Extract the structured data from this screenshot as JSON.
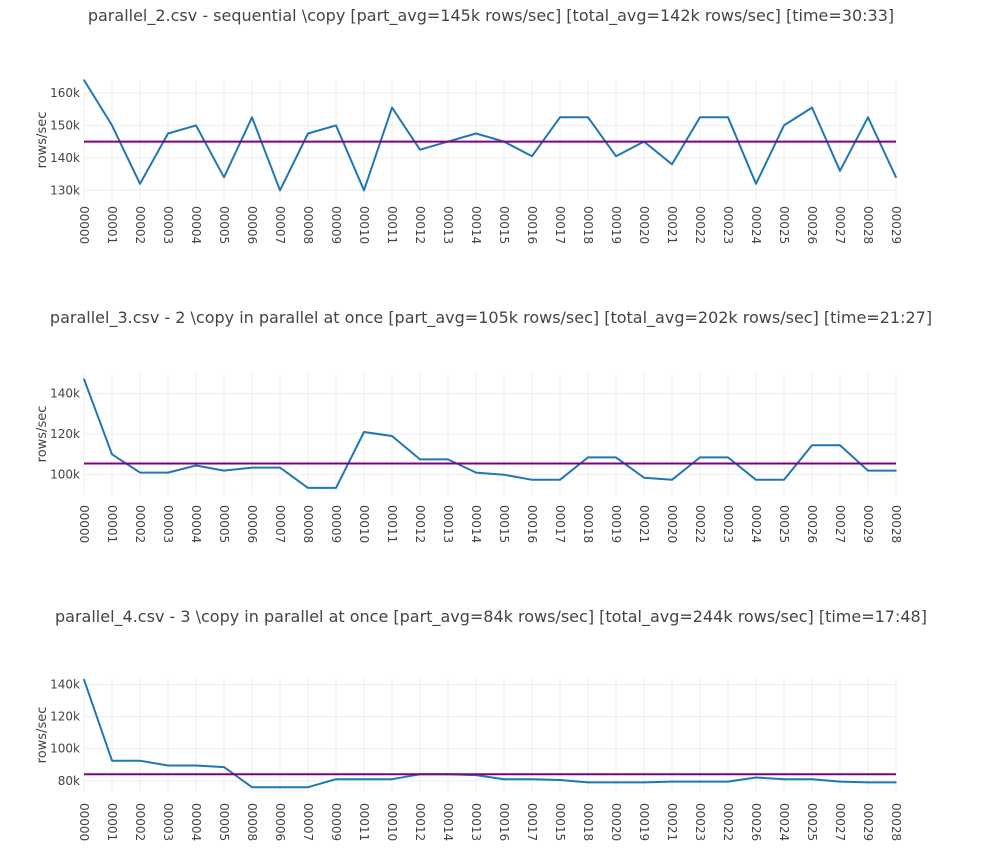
{
  "chart_data": [
    {
      "type": "line",
      "title": "parallel_2.csv - sequential \\copy [part_avg=145k rows/sec] [total_avg=142k rows/sec] [time=30:33]",
      "ylabel": "rows/sec",
      "ylim": [
        127000,
        164000
      ],
      "yticks": [
        130000,
        140000,
        150000,
        160000
      ],
      "ytick_labels": [
        "130k",
        "140k",
        "150k",
        "160k"
      ],
      "grid": true,
      "categories": [
        "00000",
        "00001",
        "00002",
        "00003",
        "00004",
        "00005",
        "00006",
        "00007",
        "00008",
        "00009",
        "00010",
        "00011",
        "00012",
        "00013",
        "00014",
        "00015",
        "00016",
        "00017",
        "00018",
        "00019",
        "00020",
        "00021",
        "00022",
        "00023",
        "00024",
        "00025",
        "00026",
        "00027",
        "00028",
        "00029"
      ],
      "series": [
        {
          "values": [
            164000,
            150000,
            132000,
            147500,
            150000,
            134000,
            152500,
            130000,
            147500,
            150000,
            130000,
            155500,
            142500,
            145000,
            147500,
            145000,
            140500,
            152500,
            152500,
            140500,
            145000,
            138000,
            152500,
            152500,
            132000,
            150000,
            155500,
            136000,
            152500,
            134000
          ],
          "color": "#1f77b4"
        },
        {
          "values": [
            145000,
            145000,
            145000,
            145000,
            145000,
            145000,
            145000,
            145000,
            145000,
            145000,
            145000,
            145000,
            145000,
            145000,
            145000,
            145000,
            145000,
            145000,
            145000,
            145000,
            145000,
            145000,
            145000,
            145000,
            145000,
            145000,
            145000,
            145000,
            145000,
            145000
          ],
          "color": "#800080"
        }
      ]
    },
    {
      "type": "line",
      "title": "parallel_3.csv - 2 \\copy in parallel at once [part_avg=105k rows/sec] [total_avg=202k rows/sec] [time=21:27]",
      "ylabel": "rows/sec",
      "ylim": [
        90000,
        150000
      ],
      "yticks": [
        100000,
        120000,
        140000
      ],
      "ytick_labels": [
        "100k",
        "120k",
        "140k"
      ],
      "grid": true,
      "categories": [
        "00000",
        "00001",
        "00002",
        "00003",
        "00004",
        "00005",
        "00006",
        "00007",
        "00008",
        "00009",
        "00010",
        "00011",
        "00012",
        "00013",
        "00014",
        "00015",
        "00016",
        "00017",
        "00018",
        "00019",
        "00021",
        "00020",
        "00022",
        "00023",
        "00024",
        "00025",
        "00026",
        "00027",
        "00029",
        "00028"
      ],
      "series": [
        {
          "values": [
            147000,
            110000,
            101000,
            101000,
            104500,
            102000,
            103500,
            103500,
            93500,
            93500,
            121000,
            119000,
            107500,
            107500,
            101000,
            100000,
            97500,
            97500,
            108500,
            108500,
            98500,
            97500,
            108500,
            108500,
            97500,
            97500,
            114500,
            114500,
            102000,
            102000
          ],
          "color": "#1f77b4"
        },
        {
          "values": [
            105500,
            105500,
            105500,
            105500,
            105500,
            105500,
            105500,
            105500,
            105500,
            105500,
            105500,
            105500,
            105500,
            105500,
            105500,
            105500,
            105500,
            105500,
            105500,
            105500,
            105500,
            105500,
            105500,
            105500,
            105500,
            105500,
            105500,
            105500,
            105500,
            105500
          ],
          "color": "#800080"
        }
      ]
    },
    {
      "type": "line",
      "title": "parallel_4.csv - 3 \\copy in parallel at once [part_avg=84k rows/sec] [total_avg=244k rows/sec] [time=17:48]",
      "ylabel": "rows/sec",
      "ylim": [
        73000,
        144000
      ],
      "yticks": [
        80000,
        100000,
        120000,
        140000
      ],
      "ytick_labels": [
        "80k",
        "100k",
        "120k",
        "140k"
      ],
      "grid": true,
      "categories": [
        "00000",
        "00001",
        "00002",
        "00003",
        "00004",
        "00005",
        "00008",
        "00006",
        "00007",
        "00009",
        "00011",
        "00010",
        "00012",
        "00014",
        "00013",
        "00016",
        "00017",
        "00015",
        "00018",
        "00020",
        "00019",
        "00021",
        "00023",
        "00022",
        "00026",
        "00024",
        "00025",
        "00027",
        "00029",
        "00028"
      ],
      "series": [
        {
          "values": [
            143000,
            92500,
            92500,
            89500,
            89500,
            88500,
            76000,
            76000,
            76000,
            81000,
            81000,
            81000,
            84000,
            84000,
            83500,
            81000,
            81000,
            80500,
            79000,
            79000,
            79000,
            79500,
            79500,
            79500,
            82000,
            81000,
            81000,
            79500,
            79000,
            79000
          ],
          "color": "#1f77b4"
        },
        {
          "values": [
            84000,
            84000,
            84000,
            84000,
            84000,
            84000,
            84000,
            84000,
            84000,
            84000,
            84000,
            84000,
            84000,
            84000,
            84000,
            84000,
            84000,
            84000,
            84000,
            84000,
            84000,
            84000,
            84000,
            84000,
            84000,
            84000,
            84000,
            84000,
            84000,
            84000
          ],
          "color": "#800080"
        }
      ]
    }
  ]
}
